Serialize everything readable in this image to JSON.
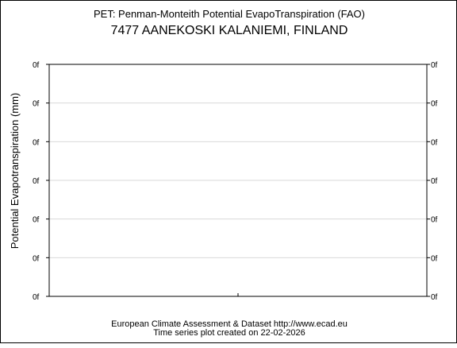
{
  "chart_data": {
    "type": "line",
    "title": "PET: Penman-Monteith Potential EvapoTranspiration (FAO)",
    "subtitle": "7477 AANEKOSKI KALANIEMI, FINLAND",
    "ylabel": "Potential Evapotranspiration (mm)",
    "xlabel": "",
    "y_tick_labels": [
      "0f",
      "0f",
      "0f",
      "0f",
      "0f",
      "0f",
      "0f"
    ],
    "grid": true,
    "series": []
  },
  "footer": {
    "line1": "European Climate Assessment & Dataset  http://www.ecad.eu",
    "line2": "Time series plot created on 22-02-2026"
  }
}
